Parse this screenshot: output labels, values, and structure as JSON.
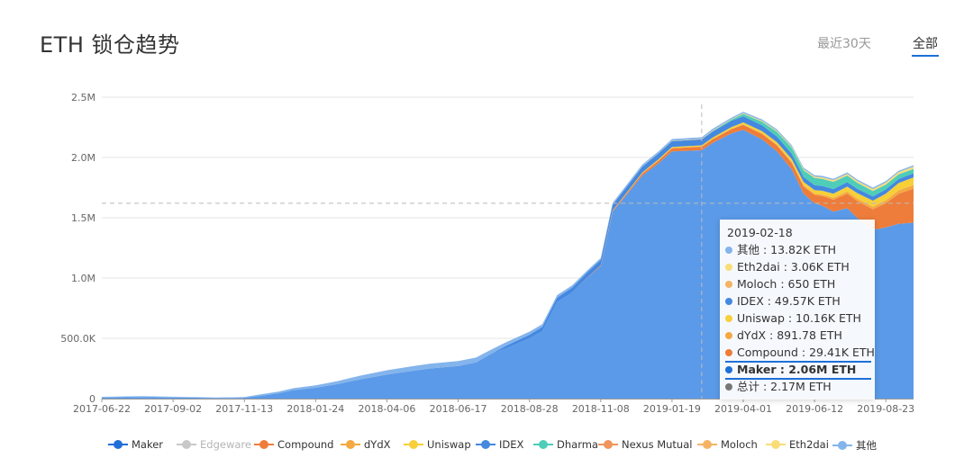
{
  "header": {
    "title": "ETH 锁仓趋势"
  },
  "range_tabs": {
    "recent_30": "最近30天",
    "all": "全部"
  },
  "chart_data": {
    "type": "area",
    "stacked": true,
    "ylim": [
      0,
      2500000
    ],
    "y_ticks": [
      0,
      500000,
      1000000,
      1500000,
      2000000,
      2500000
    ],
    "y_tick_labels": [
      "0",
      "500.0K",
      "1.0M",
      "1.5M",
      "2.0M",
      "2.5M"
    ],
    "x_tick_labels": [
      "2017-06-22",
      "2017-09-02",
      "2017-11-13",
      "2018-01-24",
      "2018-04-06",
      "2018-06-17",
      "2018-08-28",
      "2018-11-08",
      "2019-01-19",
      "2019-04-01",
      "2019-06-12",
      "2019-08-23"
    ],
    "x_range": [
      "2017-06-22",
      "2019-09-20"
    ],
    "grid": true,
    "legend_position": "bottom",
    "crosshair_date": "2019-02-18",
    "crosshair_value": 1620000,
    "dates": [
      "2017-06-22",
      "2017-08-01",
      "2017-09-15",
      "2017-10-15",
      "2017-11-13",
      "2017-12-01",
      "2017-12-18",
      "2018-01-01",
      "2018-01-24",
      "2018-02-15",
      "2018-03-10",
      "2018-04-06",
      "2018-05-01",
      "2018-05-20",
      "2018-06-17",
      "2018-07-05",
      "2018-07-20",
      "2018-08-05",
      "2018-08-28",
      "2018-09-10",
      "2018-09-25",
      "2018-10-10",
      "2018-10-25",
      "2018-11-08",
      "2018-11-20",
      "2018-12-05",
      "2018-12-20",
      "2019-01-05",
      "2019-01-19",
      "2019-02-18",
      "2019-03-01",
      "2019-03-20",
      "2019-04-01",
      "2019-04-20",
      "2019-05-05",
      "2019-05-20",
      "2019-06-01",
      "2019-06-12",
      "2019-06-20",
      "2019-07-01",
      "2019-07-15",
      "2019-07-25",
      "2019-08-10",
      "2019-08-23",
      "2019-09-05",
      "2019-09-20"
    ],
    "series": [
      {
        "name": "Maker",
        "color": "#5b9ae8",
        "values": [
          10000,
          12000,
          8000,
          5000,
          7000,
          25000,
          45000,
          70000,
          90000,
          120000,
          160000,
          200000,
          230000,
          250000,
          270000,
          300000,
          370000,
          420000,
          500000,
          560000,
          800000,
          880000,
          1000000,
          1100000,
          1550000,
          1700000,
          1850000,
          1950000,
          2050000,
          2060000,
          2120000,
          2200000,
          2230000,
          2150000,
          2050000,
          1900000,
          1700000,
          1620000,
          1600000,
          1550000,
          1580000,
          1500000,
          1400000,
          1420000,
          1450000,
          1460000
        ]
      },
      {
        "name": "Edgeware",
        "color": "#c8c8c8",
        "values": [
          0,
          0,
          0,
          0,
          0,
          0,
          0,
          0,
          0,
          0,
          0,
          0,
          0,
          0,
          0,
          0,
          0,
          0,
          0,
          0,
          0,
          0,
          0,
          0,
          0,
          0,
          0,
          0,
          0,
          0,
          0,
          0,
          0,
          0,
          0,
          0,
          0,
          0,
          0,
          0,
          0,
          0,
          0,
          0,
          0,
          0
        ]
      },
      {
        "name": "Compound",
        "color": "#ee7d3b",
        "values": [
          0,
          0,
          0,
          0,
          0,
          0,
          0,
          0,
          0,
          0,
          0,
          0,
          0,
          0,
          0,
          0,
          0,
          0,
          0,
          0,
          0,
          0,
          2000,
          5000,
          8000,
          12000,
          18000,
          22000,
          26000,
          29410,
          31000,
          35000,
          40000,
          45000,
          50000,
          55000,
          60000,
          70000,
          80000,
          100000,
          120000,
          140000,
          170000,
          200000,
          250000,
          280000
        ]
      },
      {
        "name": "dYdX",
        "color": "#f4a942",
        "values": [
          0,
          0,
          0,
          0,
          0,
          0,
          0,
          0,
          0,
          0,
          0,
          0,
          0,
          0,
          0,
          0,
          0,
          0,
          0,
          0,
          0,
          0,
          0,
          0,
          300,
          500,
          700,
          800,
          850,
          891.78,
          1000,
          2000,
          3000,
          4000,
          5000,
          6000,
          8000,
          10000,
          12000,
          15000,
          18000,
          20000,
          22000,
          25000,
          28000,
          30000
        ]
      },
      {
        "name": "Uniswap",
        "color": "#f7cf39",
        "values": [
          0,
          0,
          0,
          0,
          0,
          0,
          0,
          0,
          0,
          0,
          0,
          0,
          0,
          0,
          0,
          0,
          0,
          0,
          0,
          0,
          0,
          0,
          0,
          1000,
          3000,
          5000,
          7000,
          9000,
          9500,
          10160,
          12000,
          15000,
          18000,
          20000,
          22000,
          25000,
          28000,
          30000,
          32000,
          35000,
          40000,
          45000,
          50000,
          55000,
          60000,
          65000
        ]
      },
      {
        "name": "IDEX",
        "color": "#4488e0",
        "values": [
          0,
          0,
          0,
          0,
          0,
          0,
          0,
          0,
          0,
          0,
          0,
          0,
          0,
          0,
          0,
          0,
          0,
          20000,
          30000,
          35000,
          38000,
          40000,
          42000,
          45000,
          47000,
          48000,
          49000,
          49500,
          49600,
          49570,
          50000,
          52000,
          50000,
          48000,
          46000,
          44000,
          42000,
          40000,
          39000,
          38000,
          37000,
          36000,
          35000,
          35000,
          34000,
          34000
        ]
      },
      {
        "name": "Dharma",
        "color": "#4ecdb8",
        "values": [
          0,
          0,
          0,
          0,
          0,
          0,
          0,
          0,
          0,
          0,
          0,
          0,
          0,
          0,
          0,
          0,
          0,
          0,
          0,
          0,
          0,
          0,
          0,
          0,
          0,
          0,
          0,
          0,
          0,
          0,
          5000,
          10000,
          20000,
          30000,
          40000,
          50000,
          55000,
          60000,
          60000,
          60000,
          55000,
          50000,
          45000,
          40000,
          38000,
          36000
        ]
      },
      {
        "name": "Nexus Mutual",
        "color": "#f0955c",
        "values": [
          0,
          0,
          0,
          0,
          0,
          0,
          0,
          0,
          0,
          0,
          0,
          0,
          0,
          0,
          0,
          0,
          0,
          0,
          0,
          0,
          0,
          0,
          0,
          0,
          0,
          0,
          0,
          0,
          0,
          0,
          0,
          0,
          0,
          0,
          0,
          0,
          0,
          0,
          0,
          0,
          0,
          0,
          0,
          0,
          0,
          0
        ]
      },
      {
        "name": "Moloch",
        "color": "#f5b364",
        "values": [
          0,
          0,
          0,
          0,
          0,
          0,
          0,
          0,
          0,
          0,
          0,
          0,
          0,
          0,
          0,
          0,
          0,
          0,
          0,
          0,
          0,
          0,
          0,
          0,
          0,
          0,
          0,
          100,
          400,
          650,
          700,
          800,
          900,
          1000,
          1000,
          1000,
          1000,
          1000,
          1000,
          1000,
          1000,
          1000,
          1000,
          1000,
          1000,
          1000
        ]
      },
      {
        "name": "Eth2dai",
        "color": "#f9dd77",
        "values": [
          0,
          0,
          0,
          0,
          0,
          0,
          0,
          0,
          0,
          0,
          0,
          0,
          0,
          0,
          0,
          0,
          0,
          0,
          0,
          0,
          0,
          0,
          0,
          0,
          1000,
          1500,
          2000,
          2500,
          2800,
          3060,
          3500,
          4000,
          5000,
          6000,
          7000,
          8000,
          9000,
          10000,
          11000,
          12000,
          13000,
          14000,
          15000,
          16000,
          17000,
          18000
        ]
      },
      {
        "name": "其他",
        "color": "#84b4ec",
        "values": [
          5000,
          8000,
          6000,
          4000,
          6000,
          12000,
          14000,
          16000,
          20000,
          25000,
          30000,
          35000,
          38000,
          40000,
          42000,
          40000,
          35000,
          30000,
          25000,
          22000,
          20000,
          18000,
          16000,
          15000,
          14000,
          14000,
          14000,
          14000,
          13900,
          13820,
          13000,
          12000,
          12000,
          12000,
          12000,
          12000,
          12000,
          12000,
          12000,
          12000,
          12000,
          12000,
          12000,
          12000,
          12000,
          12000
        ]
      }
    ],
    "tooltip": {
      "date": "2019-02-18",
      "rows": [
        {
          "label": "其他 : 13.82K ETH",
          "color": "#84b4ec"
        },
        {
          "label": "Eth2dai : 3.06K ETH",
          "color": "#f9dd77"
        },
        {
          "label": "Moloch : 650 ETH",
          "color": "#f5b364"
        },
        {
          "label": "IDEX : 49.57K ETH",
          "color": "#4488e0"
        },
        {
          "label": "Uniswap : 10.16K ETH",
          "color": "#f7cf39"
        },
        {
          "label": "dYdX : 891.78 ETH",
          "color": "#f4a942"
        },
        {
          "label": "Compound : 29.41K ETH",
          "color": "#ee7d3b"
        },
        {
          "label": "Maker : 2.06M ETH",
          "color": "#1f6fd8",
          "highlight": true
        },
        {
          "label": "总计 : 2.17M ETH",
          "color": "#777777"
        }
      ]
    },
    "legend": [
      {
        "name": "Maker",
        "color": "#1f6fd8",
        "active": true
      },
      {
        "name": "Edgeware",
        "color": "#c8c8c8",
        "active": false
      },
      {
        "name": "Compound",
        "color": "#ee7d3b",
        "active": true
      },
      {
        "name": "dYdX",
        "color": "#f4a942",
        "active": true
      },
      {
        "name": "Uniswap",
        "color": "#f7cf39",
        "active": true
      },
      {
        "name": "IDEX",
        "color": "#4488e0",
        "active": true
      },
      {
        "name": "Dharma",
        "color": "#4ecdb8",
        "active": true
      },
      {
        "name": "Nexus Mutual",
        "color": "#f0955c",
        "active": true
      },
      {
        "name": "Moloch",
        "color": "#f5b364",
        "active": true
      },
      {
        "name": "Eth2dai",
        "color": "#f9dd77",
        "active": true
      },
      {
        "name": "其他",
        "color": "#84b4ec",
        "active": true
      }
    ]
  }
}
